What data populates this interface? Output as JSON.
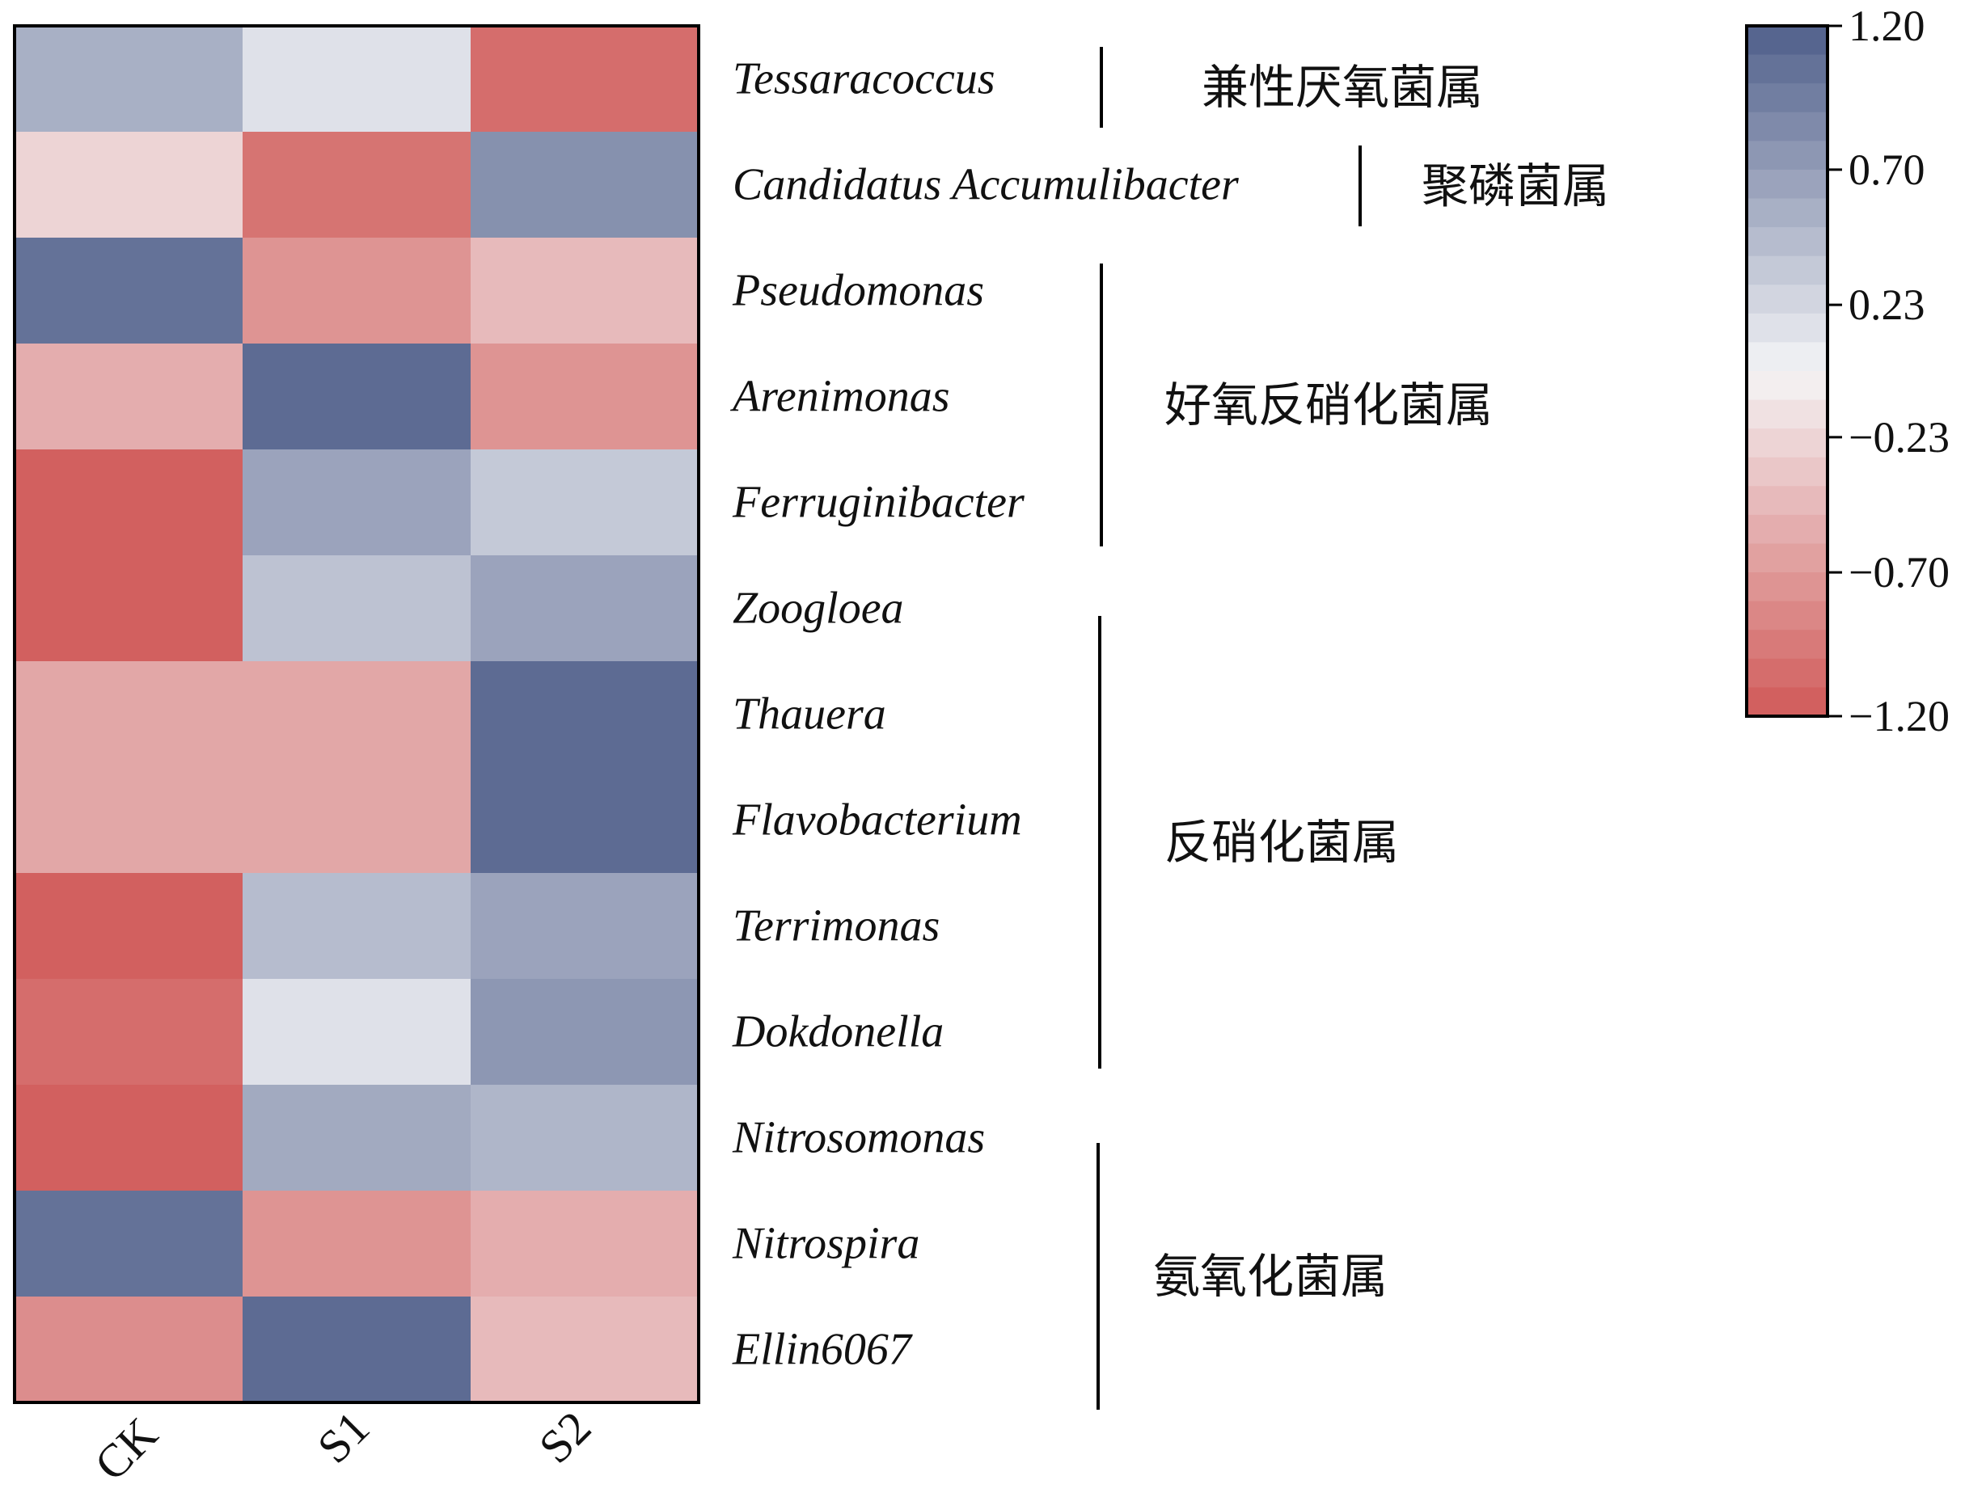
{
  "chart_data": {
    "type": "heatmap",
    "columns": [
      "CK",
      "S1",
      "S2"
    ],
    "rows": [
      "Tessaracoccus",
      "Candidatus Accumulibacter",
      "Pseudomonas",
      "Arenimonas",
      "Ferruginibacter",
      "Zoogloea",
      "Thauera",
      "Flavobacterium",
      "Terrimonas",
      "Dokdonella",
      "Nitrosomonas",
      "Nitrospira",
      "Ellin6067"
    ],
    "values": [
      [
        0.55,
        0.15,
        -1.05
      ],
      [
        -0.25,
        -1.0,
        0.8
      ],
      [
        1.05,
        -0.75,
        -0.45
      ],
      [
        -0.55,
        1.1,
        -0.75
      ],
      [
        -1.15,
        0.65,
        0.35
      ],
      [
        -1.15,
        0.4,
        0.65
      ],
      [
        -0.6,
        -0.6,
        1.1
      ],
      [
        -0.6,
        -0.6,
        1.1
      ],
      [
        -1.15,
        0.45,
        0.65
      ],
      [
        -1.05,
        0.15,
        0.75
      ],
      [
        -1.15,
        0.6,
        0.5
      ],
      [
        1.05,
        -0.75,
        -0.55
      ],
      [
        -0.8,
        1.1,
        -0.45
      ]
    ],
    "groups": [
      {
        "label": "兼性厌氧菌属",
        "from": 0,
        "to": 0
      },
      {
        "label": "聚磷菌属",
        "from": 1,
        "to": 1
      },
      {
        "label": "好氧反硝化菌属",
        "from": 2,
        "to": 4
      },
      {
        "label": "反硝化菌属",
        "from": 5,
        "to": 9
      },
      {
        "label": "氨氧化菌属",
        "from": 10,
        "to": 12
      }
    ],
    "color_scale": {
      "min": -1.2,
      "max": 1.2,
      "ticks": [
        "1.20",
        "0.70",
        "0.23",
        "−0.23",
        "−0.70",
        "−1.20"
      ],
      "tick_values": [
        1.2,
        0.7,
        0.23,
        -0.23,
        -0.7,
        -1.2
      ],
      "low_color": "#d05a58",
      "mid_color": "#f4f4f6",
      "high_color": "#4f5f8a"
    },
    "xlabel": "",
    "ylabel": ""
  }
}
